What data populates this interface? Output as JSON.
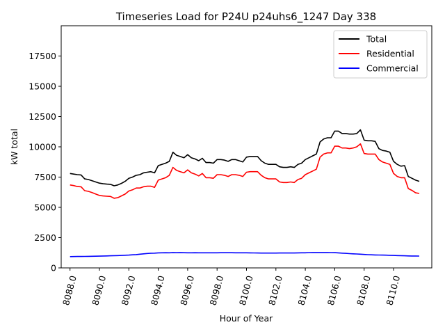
{
  "chart_data": {
    "type": "line",
    "title": "Timeseries Load for P24U p24uhs6_1247  Day 338",
    "xlabel": "Hour of Year",
    "ylabel": "kW total",
    "xlim": [
      8087.4,
      8112.6
    ],
    "ylim": [
      0,
      20000
    ],
    "xticks": [
      8088.0,
      8090.0,
      8092.0,
      8094.0,
      8096.0,
      8098.0,
      8100.0,
      8102.0,
      8104.0,
      8106.0,
      8108.0,
      8110.0
    ],
    "xtick_labels": [
      "8088.0",
      "8090.0",
      "8092.0",
      "8094.0",
      "8096.0",
      "8098.0",
      "8100.0",
      "8102.0",
      "8104.0",
      "8106.0",
      "8108.0",
      "8110.0"
    ],
    "yticks": [
      0,
      2500,
      5000,
      7500,
      10000,
      12500,
      15000,
      17500
    ],
    "ytick_labels": [
      "0",
      "2500",
      "5000",
      "7500",
      "10000",
      "12500",
      "15000",
      "17500"
    ],
    "legend_position": "top-right",
    "x": [
      8088.0,
      8088.25,
      8088.5,
      8088.75,
      8089.0,
      8089.25,
      8089.5,
      8089.75,
      8090.0,
      8090.25,
      8090.5,
      8090.75,
      8091.0,
      8091.25,
      8091.5,
      8091.75,
      8092.0,
      8092.25,
      8092.5,
      8092.75,
      8093.0,
      8093.25,
      8093.5,
      8093.75,
      8094.0,
      8094.25,
      8094.5,
      8094.75,
      8095.0,
      8095.25,
      8095.5,
      8095.75,
      8096.0,
      8096.25,
      8096.5,
      8096.75,
      8097.0,
      8097.25,
      8097.5,
      8097.75,
      8098.0,
      8098.25,
      8098.5,
      8098.75,
      8099.0,
      8099.25,
      8099.5,
      8099.75,
      8100.0,
      8100.25,
      8100.5,
      8100.75,
      8101.0,
      8101.25,
      8101.5,
      8101.75,
      8102.0,
      8102.25,
      8102.5,
      8102.75,
      8103.0,
      8103.25,
      8103.5,
      8103.75,
      8104.0,
      8104.25,
      8104.5,
      8104.75,
      8105.0,
      8105.25,
      8105.5,
      8105.75,
      8106.0,
      8106.25,
      8106.5,
      8106.75,
      8107.0,
      8107.25,
      8107.5,
      8107.75,
      8108.0,
      8108.25,
      8108.5,
      8108.75,
      8109.0,
      8109.25,
      8109.5,
      8109.75,
      8110.0,
      8110.25,
      8110.5,
      8110.75,
      8111.0,
      8111.25,
      8111.5,
      8111.75
    ],
    "series": [
      {
        "name": "Total",
        "color": "#000000",
        "values": [
          7800,
          7750,
          7700,
          7680,
          7350,
          7300,
          7200,
          7100,
          7000,
          6950,
          6920,
          6900,
          6780,
          6850,
          6980,
          7150,
          7400,
          7500,
          7650,
          7700,
          7850,
          7900,
          7950,
          7850,
          8450,
          8550,
          8650,
          8800,
          9550,
          9300,
          9200,
          9100,
          9350,
          9100,
          9000,
          8850,
          9050,
          8700,
          8700,
          8650,
          8950,
          8950,
          8900,
          8800,
          8950,
          8950,
          8850,
          8750,
          9150,
          9200,
          9200,
          9200,
          8850,
          8650,
          8550,
          8550,
          8550,
          8350,
          8300,
          8300,
          8350,
          8300,
          8550,
          8650,
          8950,
          9100,
          9250,
          9400,
          10400,
          10650,
          10750,
          10750,
          11300,
          11300,
          11100,
          11100,
          11050,
          11050,
          11100,
          11400,
          10550,
          10500,
          10500,
          10450,
          9850,
          9700,
          9650,
          9550,
          8800,
          8550,
          8400,
          8450,
          7550,
          7400,
          7250,
          7150
        ]
      },
      {
        "name": "Residential",
        "color": "#ff0000",
        "values": [
          6850,
          6800,
          6720,
          6700,
          6380,
          6320,
          6220,
          6100,
          5980,
          5940,
          5920,
          5900,
          5750,
          5800,
          5950,
          6100,
          6350,
          6450,
          6600,
          6600,
          6700,
          6750,
          6750,
          6650,
          7250,
          7350,
          7450,
          7650,
          8300,
          8050,
          7950,
          7850,
          8100,
          7850,
          7750,
          7600,
          7800,
          7450,
          7450,
          7400,
          7700,
          7700,
          7650,
          7550,
          7700,
          7700,
          7650,
          7550,
          7900,
          7950,
          7950,
          7950,
          7650,
          7450,
          7350,
          7350,
          7350,
          7100,
          7050,
          7050,
          7100,
          7050,
          7300,
          7400,
          7700,
          7850,
          8000,
          8150,
          9150,
          9400,
          9500,
          9500,
          10050,
          10050,
          9900,
          9900,
          9850,
          9900,
          10000,
          10250,
          9450,
          9400,
          9400,
          9400,
          8950,
          8750,
          8650,
          8550,
          7800,
          7550,
          7450,
          7450,
          6550,
          6400,
          6200,
          6150
        ]
      },
      {
        "name": "Commercial",
        "color": "#0000ff",
        "values": [
          930,
          935,
          940,
          945,
          950,
          955,
          960,
          965,
          970,
          980,
          990,
          1000,
          1010,
          1020,
          1030,
          1045,
          1060,
          1080,
          1100,
          1130,
          1160,
          1190,
          1210,
          1220,
          1240,
          1250,
          1255,
          1250,
          1260,
          1255,
          1260,
          1255,
          1250,
          1250,
          1252,
          1250,
          1250,
          1250,
          1250,
          1250,
          1250,
          1252,
          1252,
          1252,
          1252,
          1250,
          1250,
          1250,
          1245,
          1240,
          1235,
          1230,
          1225,
          1225,
          1225,
          1225,
          1225,
          1230,
          1230,
          1230,
          1230,
          1230,
          1240,
          1245,
          1250,
          1265,
          1270,
          1270,
          1270,
          1270,
          1270,
          1265,
          1260,
          1240,
          1220,
          1200,
          1180,
          1160,
          1150,
          1130,
          1110,
          1090,
          1080,
          1070,
          1065,
          1060,
          1050,
          1040,
          1030,
          1020,
          1010,
          1000,
          990,
          985,
          980,
          975
        ]
      }
    ]
  }
}
